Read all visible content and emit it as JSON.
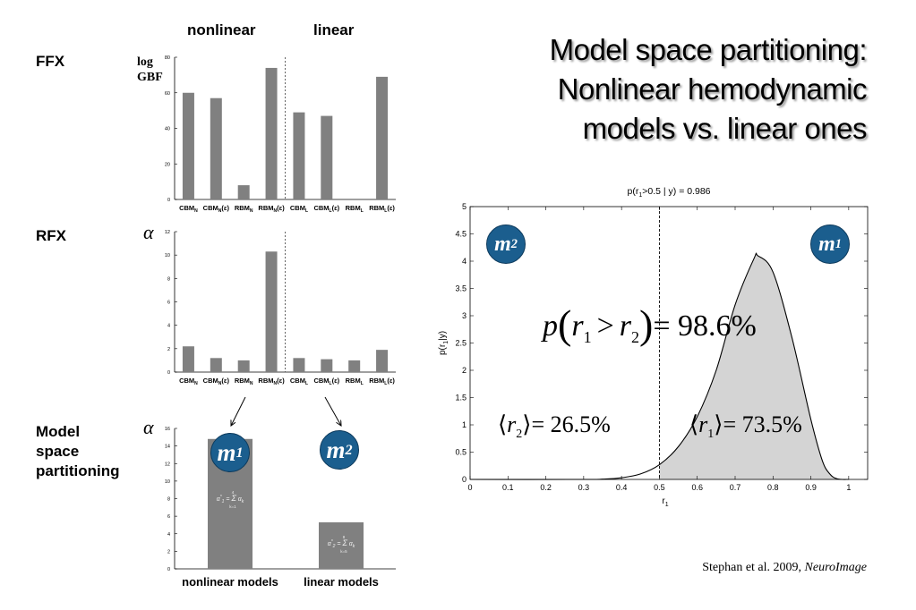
{
  "slide": {
    "title_lines": [
      "Model space partitioning:",
      "Nonlinear hemodynamic",
      "models vs. linear ones"
    ],
    "col_nonlinear": "nonlinear",
    "col_linear": "linear",
    "row_ffx": "FFX",
    "row_rfx": "RFX",
    "row_msp": [
      "Model",
      "space",
      "partitioning"
    ],
    "ylab_ffx": [
      "log",
      "GBF"
    ],
    "ylab_alpha": "α",
    "citation_authors": "Stephan et al. 2009, ",
    "citation_journal": "NeuroImage",
    "m1": {
      "m": "m",
      "sub": "1"
    },
    "m2": {
      "m": "m",
      "sub": "2"
    },
    "accent": "#1b5e8e",
    "bar_color": "#808080",
    "shade_color": "#d4d4d4"
  },
  "chart_data": [
    {
      "type": "bar",
      "name": "FFX",
      "categories": [
        "CBM_N",
        "CBM_N(ε)",
        "RBM_N",
        "RBM_N(ε)",
        "CBM_L",
        "CBM_L(ε)",
        "RBM_L",
        "RBM_L(ε)"
      ],
      "tick_labels": [
        {
          "main": "CBM",
          "sub": "N",
          "post": ""
        },
        {
          "main": "CBM",
          "sub": "N",
          "post": "(ε)"
        },
        {
          "main": "RBM",
          "sub": "N",
          "post": ""
        },
        {
          "main": "RBM",
          "sub": "N",
          "post": "(ε)"
        },
        {
          "main": "CBM",
          "sub": "L",
          "post": ""
        },
        {
          "main": "CBM",
          "sub": "L",
          "post": "(ε)"
        },
        {
          "main": "RBM",
          "sub": "L",
          "post": ""
        },
        {
          "main": "RBM",
          "sub": "L",
          "post": "(ε)"
        }
      ],
      "values": [
        60,
        57,
        8,
        74,
        49,
        47,
        0,
        69
      ],
      "ylim": [
        0,
        80
      ],
      "yticks": [
        0,
        20,
        40,
        60,
        80
      ]
    },
    {
      "type": "bar",
      "name": "RFX",
      "categories": [
        "CBM_N",
        "CBM_N(ε)",
        "RBM_N",
        "RBM_N(ε)",
        "CBM_L",
        "CBM_L(ε)",
        "RBM_L",
        "RBM_L(ε)"
      ],
      "values": [
        2.2,
        1.2,
        1.0,
        10.3,
        1.2,
        1.1,
        1.0,
        1.9
      ],
      "ylim": [
        0,
        12
      ],
      "yticks": [
        0,
        2,
        4,
        6,
        8,
        10,
        12
      ]
    },
    {
      "type": "bar",
      "name": "Model space partitioning",
      "categories": [
        "nonlinear models",
        "linear models"
      ],
      "values": [
        14.8,
        5.3
      ],
      "ylim": [
        0,
        16
      ],
      "yticks": [
        0,
        2,
        4,
        6,
        8,
        10,
        12,
        14,
        16
      ],
      "formula_1": {
        "lhs": "α",
        "lhs_sup": "*",
        "lhs_sub": "1",
        "sum_top": "4",
        "sum_bot": "k=1",
        "rhs": "α",
        "rhs_sub": "k"
      },
      "formula_2": {
        "lhs": "α",
        "lhs_sup": "*",
        "lhs_sub": "2",
        "sum_top": "8",
        "sum_bot": "k=5",
        "rhs": "α",
        "rhs_sub": "k"
      }
    },
    {
      "type": "area",
      "name": "posterior",
      "title": {
        "pre": "p(r",
        "sub": "1",
        "post": ">0.5 | y) = 0.986"
      },
      "xlabel": {
        "main": "r",
        "sub": "1"
      },
      "ylabel": {
        "pre": "p(r",
        "sub": "1",
        "post": "|y)"
      },
      "xlim": [
        0,
        1.05
      ],
      "ylim": [
        0,
        5
      ],
      "xticks": [
        0,
        0.1,
        0.2,
        0.3,
        0.4,
        0.5,
        0.6,
        0.7,
        0.8,
        0.9,
        1
      ],
      "yticks": [
        0,
        0.5,
        1,
        1.5,
        2,
        2.5,
        3,
        3.5,
        4,
        4.5,
        5
      ],
      "threshold": 0.5,
      "shade_from": 0.5,
      "x": [
        0,
        0.3,
        0.35,
        0.4,
        0.45,
        0.5,
        0.55,
        0.6,
        0.65,
        0.7,
        0.75,
        0.76,
        0.8,
        0.85,
        0.9,
        0.93,
        0.95,
        0.97,
        1.0
      ],
      "y": [
        0,
        0,
        0.005,
        0.03,
        0.1,
        0.27,
        0.6,
        1.15,
        2.0,
        3.2,
        4.05,
        4.1,
        3.8,
        2.6,
        1.1,
        0.35,
        0.1,
        0.01,
        0
      ],
      "annotation_p": {
        "p": "p",
        "r1": "r",
        "s1": "1",
        "op": ">",
        "r2": "r",
        "s2": "2",
        "eq": "= 98.6%"
      },
      "annotation_r2": {
        "r": "r",
        "s": "2",
        "eq": "= 26.5%"
      },
      "annotation_r1": {
        "r": "r",
        "s": "1",
        "eq": "= 73.5%"
      }
    }
  ]
}
